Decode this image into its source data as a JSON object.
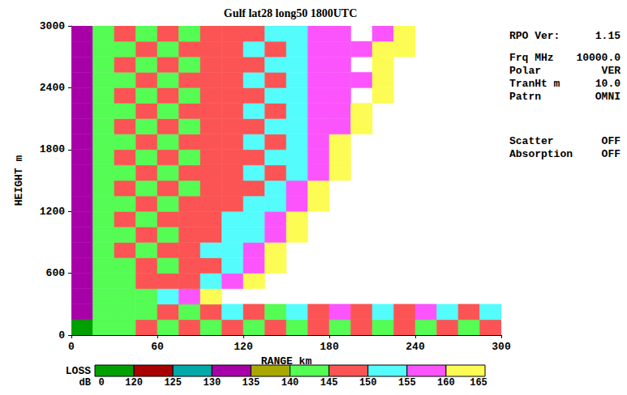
{
  "chart_data": {
    "type": "heatmap",
    "title": "Gulf lat28 long50 1800UTC",
    "x_label": "RANGE km",
    "y_label": "HEIGHT m",
    "xlim": [
      0,
      300
    ],
    "ylim": [
      0,
      3000
    ],
    "xticks": [
      0,
      60,
      120,
      180,
      240,
      300
    ],
    "yticks": [
      0,
      600,
      1200,
      1800,
      2400,
      3000
    ],
    "grid": false,
    "cells": {
      "x_edges": [
        0,
        15,
        30,
        45,
        60,
        75,
        90,
        105,
        120,
        135,
        150,
        165,
        180,
        195,
        210,
        225,
        240,
        255,
        270,
        285,
        300
      ],
      "y_edges": [
        0,
        150,
        300,
        450,
        600,
        750,
        900,
        1050,
        1200,
        1350,
        1500,
        1650,
        1800,
        1950,
        2100,
        2250,
        2400,
        2550,
        2700,
        2850,
        3000
      ],
      "values": [
        [
          100,
          142,
          142,
          147,
          142,
          147,
          142,
          147,
          142,
          147,
          142,
          147,
          142,
          147,
          142,
          147,
          142,
          147,
          142,
          147
        ],
        [
          130,
          142,
          142,
          142,
          147,
          142,
          147,
          152,
          147,
          142,
          152,
          147,
          157,
          147,
          152,
          147,
          157,
          152,
          147,
          152
        ],
        [
          130,
          142,
          142,
          142,
          152,
          157,
          162,
          null,
          null,
          null,
          null,
          null,
          null,
          null,
          null,
          null,
          null,
          null,
          null,
          null
        ],
        [
          130,
          142,
          142,
          147,
          147,
          147,
          152,
          157,
          162,
          null,
          null,
          null,
          null,
          null,
          null,
          null,
          null,
          null,
          null,
          null
        ],
        [
          130,
          142,
          142,
          147,
          142,
          147,
          147,
          152,
          157,
          162,
          null,
          null,
          null,
          null,
          null,
          null,
          null,
          null,
          null,
          null
        ],
        [
          130,
          142,
          147,
          142,
          147,
          147,
          152,
          152,
          157,
          162,
          null,
          null,
          null,
          null,
          null,
          null,
          null,
          null,
          null,
          null
        ],
        [
          130,
          142,
          142,
          147,
          142,
          147,
          147,
          152,
          152,
          157,
          162,
          null,
          null,
          null,
          null,
          null,
          null,
          null,
          null,
          null
        ],
        [
          130,
          142,
          147,
          142,
          147,
          147,
          147,
          152,
          152,
          157,
          162,
          null,
          null,
          null,
          null,
          null,
          null,
          null,
          null,
          null
        ],
        [
          130,
          142,
          142,
          147,
          142,
          147,
          147,
          147,
          152,
          152,
          157,
          162,
          null,
          null,
          null,
          null,
          null,
          null,
          null,
          null
        ],
        [
          130,
          142,
          147,
          142,
          147,
          142,
          147,
          147,
          147,
          152,
          157,
          162,
          null,
          null,
          null,
          null,
          null,
          null,
          null,
          null
        ],
        [
          130,
          142,
          142,
          147,
          142,
          147,
          147,
          147,
          152,
          147,
          152,
          157,
          162,
          null,
          null,
          null,
          null,
          null,
          null,
          null
        ],
        [
          130,
          142,
          147,
          142,
          147,
          142,
          147,
          147,
          147,
          152,
          152,
          157,
          162,
          null,
          null,
          null,
          null,
          null,
          null,
          null
        ],
        [
          130,
          142,
          142,
          147,
          142,
          147,
          147,
          147,
          152,
          147,
          152,
          157,
          162,
          null,
          null,
          null,
          null,
          null,
          null,
          null
        ],
        [
          130,
          142,
          147,
          142,
          147,
          142,
          147,
          147,
          147,
          152,
          152,
          157,
          157,
          162,
          null,
          null,
          null,
          null,
          null,
          null
        ],
        [
          130,
          142,
          142,
          147,
          142,
          147,
          147,
          147,
          152,
          147,
          152,
          157,
          157,
          162,
          null,
          null,
          null,
          null,
          null,
          null
        ],
        [
          130,
          142,
          147,
          142,
          147,
          142,
          147,
          147,
          147,
          152,
          152,
          157,
          157,
          null,
          162,
          null,
          null,
          null,
          null,
          null
        ],
        [
          130,
          142,
          142,
          147,
          142,
          147,
          147,
          147,
          152,
          147,
          152,
          157,
          157,
          157,
          162,
          null,
          null,
          null,
          null,
          null
        ],
        [
          130,
          142,
          147,
          142,
          147,
          142,
          147,
          147,
          147,
          152,
          152,
          157,
          157,
          null,
          162,
          null,
          null,
          null,
          null,
          null
        ],
        [
          130,
          142,
          142,
          147,
          142,
          147,
          147,
          147,
          152,
          147,
          152,
          157,
          157,
          157,
          162,
          162,
          null,
          null,
          null,
          null
        ],
        [
          130,
          142,
          147,
          142,
          147,
          142,
          147,
          147,
          147,
          152,
          152,
          157,
          157,
          null,
          157,
          162,
          null,
          null,
          null,
          null
        ]
      ]
    },
    "colorbar": {
      "title": [
        "LOSS",
        "dB"
      ],
      "range": [
        0,
        165
      ],
      "ticks": [
        0,
        120,
        125,
        130,
        135,
        140,
        145,
        150,
        155,
        160,
        165
      ],
      "colors": [
        "#00a000",
        "#a80000",
        "#00a8a8",
        "#a800a8",
        "#a8a800",
        "#54fc54",
        "#fc5454",
        "#54fcfc",
        "#fc54fc",
        "#fcfc54"
      ]
    },
    "annotations": [
      {
        "label": "RPO Ver:",
        "value": "1.15"
      },
      {
        "label": "Frq MHz",
        "value": "10000.0"
      },
      {
        "label": "Polar",
        "value": "VER"
      },
      {
        "label": "TranHt m",
        "value": "10.0"
      },
      {
        "label": "Patrn",
        "value": "OMNI"
      },
      {
        "label": "Scatter",
        "value": "OFF"
      },
      {
        "label": "Absorption",
        "value": "OFF"
      }
    ]
  }
}
